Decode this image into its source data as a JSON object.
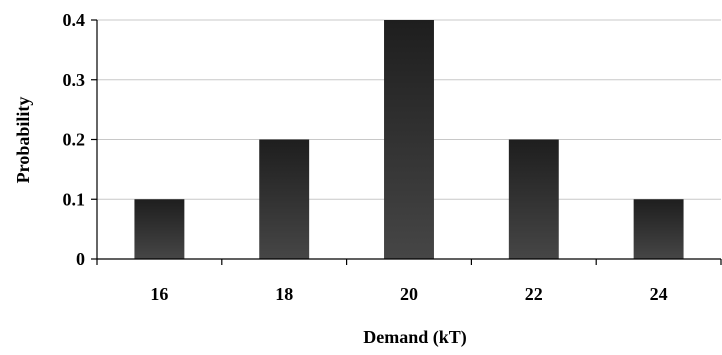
{
  "chart_data": {
    "type": "bar",
    "title": "",
    "xlabel": "Demand (kT)",
    "ylabel": "Probability",
    "categories": [
      "16",
      "18",
      "20",
      "22",
      "24"
    ],
    "values": [
      0.1,
      0.2,
      0.4,
      0.2,
      0.1
    ],
    "ylim": [
      0,
      0.4
    ],
    "yticks": [
      0,
      0.1,
      0.2,
      0.3,
      0.4
    ],
    "ytick_labels": [
      "0",
      "0.1",
      "0.2",
      "0.3",
      "0.4"
    ],
    "grid": true,
    "legend": "none",
    "colors": {
      "bar_top": "#1e1e1e",
      "bar_bottom": "#464646",
      "gridline": "#c8c8c8",
      "axis": "#000000"
    }
  }
}
